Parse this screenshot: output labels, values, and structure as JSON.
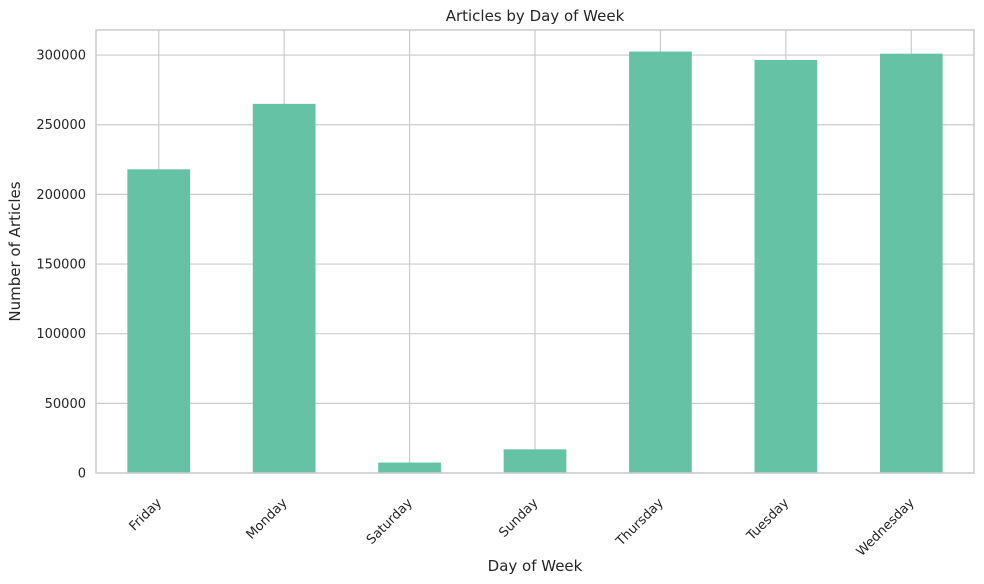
{
  "chart_data": {
    "type": "bar",
    "title": "Articles by Day of Week",
    "xlabel": "Day of Week",
    "ylabel": "Number of Articles",
    "categories": [
      "Friday",
      "Monday",
      "Saturday",
      "Sunday",
      "Thursday",
      "Tuesday",
      "Wednesday"
    ],
    "values": [
      218000,
      265000,
      7500,
      17000,
      302500,
      296500,
      301000
    ],
    "ylim": [
      0,
      318000
    ],
    "yticks": [
      0,
      50000,
      100000,
      150000,
      200000,
      250000,
      300000
    ],
    "ytick_labels": [
      "0",
      "50000",
      "100000",
      "150000",
      "200000",
      "250000",
      "300000"
    ],
    "grid": true,
    "bar_color": "#66c2a5",
    "grid_color": "#cccccc",
    "frame_color": "#cccccc"
  }
}
